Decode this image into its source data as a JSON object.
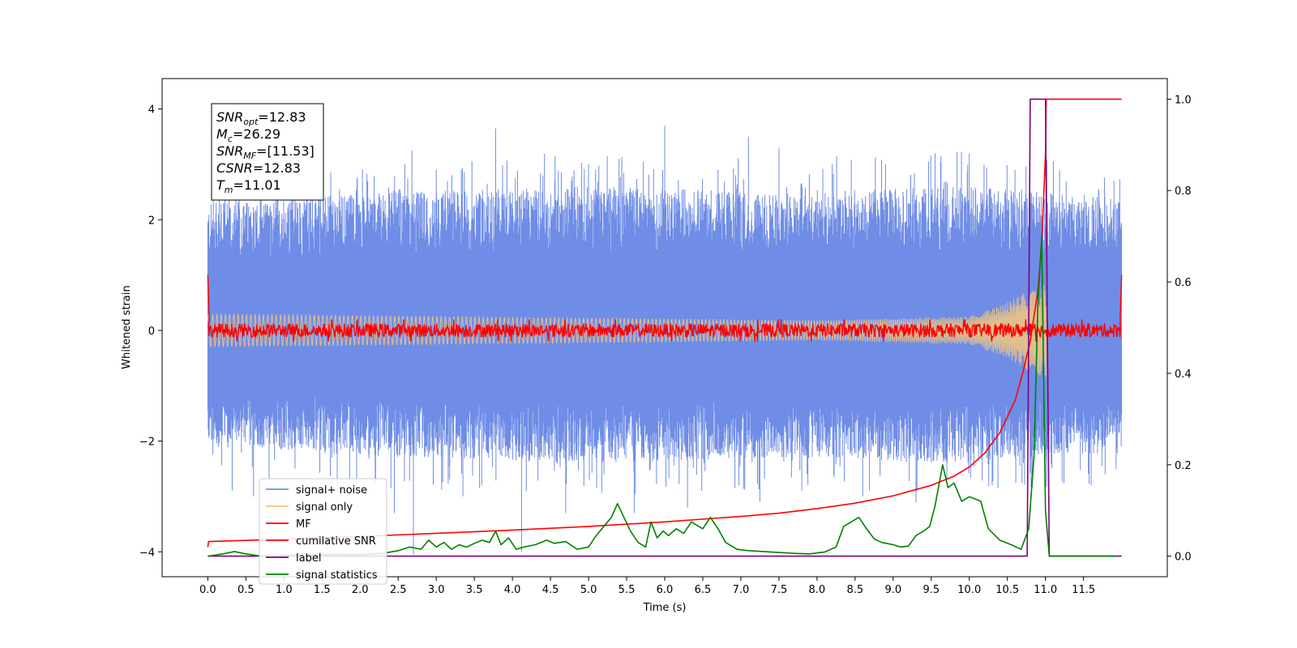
{
  "chart_data": {
    "type": "line",
    "title": "",
    "xlabel": "Time (s)",
    "ylabel": "Whitened strain",
    "y2label": "",
    "xlim": [
      -0.6,
      12.6
    ],
    "ylim": [
      -4.45,
      4.55
    ],
    "y2lim": [
      -0.045,
      1.045
    ],
    "x_ticks": [
      0.0,
      0.5,
      1.0,
      1.5,
      2.0,
      2.5,
      3.0,
      3.5,
      4.0,
      4.5,
      5.0,
      5.5,
      6.0,
      6.5,
      7.0,
      7.5,
      8.0,
      8.5,
      9.0,
      9.5,
      10.0,
      10.5,
      11.0,
      11.5
    ],
    "x_tick_labels": [
      "0.0",
      "0.5",
      "1.0",
      "1.5",
      "2.0",
      "2.5",
      "3.0",
      "3.5",
      "4.0",
      "4.5",
      "5.0",
      "5.5",
      "6.0",
      "6.5",
      "7.0",
      "7.5",
      "8.0",
      "8.5",
      "9.0",
      "9.5",
      "10.0",
      "10.5",
      "11.0",
      "11.5"
    ],
    "y_ticks": [
      -4,
      -2,
      0,
      2,
      4
    ],
    "y_tick_labels": [
      "−4",
      "−2",
      "0",
      "2",
      "4"
    ],
    "y2_ticks": [
      0.0,
      0.2,
      0.4,
      0.6,
      0.8,
      1.0
    ],
    "y2_tick_labels": [
      "0.0",
      "0.2",
      "0.4",
      "0.6",
      "0.8",
      "1.0"
    ],
    "grid": false,
    "legend_position": "lower-left",
    "legend": [
      {
        "label": "signal+ noise",
        "color": "#6f8de6"
      },
      {
        "label": "signal only",
        "color": "#f5c77e"
      },
      {
        "label": "MF",
        "color": "#ff0000"
      },
      {
        "label": "cumilative SNR",
        "color": "#ff0000"
      },
      {
        "label": "label",
        "color": "#800080"
      },
      {
        "label": "signal statistics",
        "color": "#008000"
      }
    ],
    "annotation": [
      {
        "sym": "SNR",
        "sub": "opt",
        "val": "=12.83"
      },
      {
        "sym": "M",
        "sub": "c",
        "val": "=26.29"
      },
      {
        "sym": "SNR",
        "sub": "MF",
        "val": "=[11.53]"
      },
      {
        "sym": "CSNR",
        "sub": "",
        "val": "=12.83"
      },
      {
        "sym": "T",
        "sub": "m",
        "val": "=11.01"
      }
    ],
    "series": [
      {
        "name": "signal+ noise",
        "axis": "left",
        "color": "#6f8de6",
        "kind": "noise",
        "x_range": [
          0.0,
          12.0
        ],
        "envelope_upper": [
          [
            0.0,
            2.3
          ],
          [
            2.5,
            2.5
          ],
          [
            5.0,
            2.6
          ],
          [
            7.5,
            2.5
          ],
          [
            10.0,
            2.6
          ],
          [
            12.0,
            2.4
          ]
        ],
        "envelope_lower": [
          [
            0.0,
            -2.1
          ],
          [
            2.5,
            -2.3
          ],
          [
            5.0,
            -2.4
          ],
          [
            7.5,
            -2.3
          ],
          [
            10.0,
            -2.4
          ],
          [
            12.0,
            -2.2
          ]
        ],
        "spikes": [
          [
            0.15,
            2.4
          ],
          [
            0.32,
            -2.9
          ],
          [
            0.6,
            -3.0
          ],
          [
            1.3,
            2.9
          ],
          [
            1.7,
            -3.1
          ],
          [
            2.1,
            2.7
          ],
          [
            2.45,
            -3.3
          ],
          [
            2.68,
            3.25
          ],
          [
            2.7,
            -4.05
          ],
          [
            3.0,
            2.9
          ],
          [
            3.35,
            -3.0
          ],
          [
            3.78,
            3.65
          ],
          [
            4.12,
            -4.0
          ],
          [
            4.4,
            2.8
          ],
          [
            4.7,
            -3.3
          ],
          [
            5.0,
            3.0
          ],
          [
            5.4,
            3.1
          ],
          [
            5.6,
            -3.3
          ],
          [
            6.0,
            3.7
          ],
          [
            6.3,
            -3.2
          ],
          [
            6.7,
            2.9
          ],
          [
            7.1,
            3.5
          ],
          [
            7.25,
            -3.1
          ],
          [
            7.5,
            3.3
          ],
          [
            7.8,
            -2.9
          ],
          [
            8.2,
            3.0
          ],
          [
            8.6,
            -3.0
          ],
          [
            8.9,
            3.0
          ],
          [
            9.3,
            -3.1
          ],
          [
            9.55,
            3.2
          ],
          [
            10.0,
            3.2
          ],
          [
            10.3,
            -2.8
          ],
          [
            10.6,
            2.9
          ],
          [
            11.6,
            -2.8
          ],
          [
            11.9,
            2.7
          ]
        ]
      },
      {
        "name": "signal only",
        "axis": "left",
        "color": "#f5c77e",
        "kind": "chirp",
        "x_range": [
          0.0,
          11.01
        ],
        "amplitude": [
          [
            0.0,
            0.3
          ],
          [
            8.0,
            0.18
          ],
          [
            10.0,
            0.25
          ],
          [
            10.5,
            0.5
          ],
          [
            10.8,
            0.75
          ],
          [
            11.0,
            0.85
          ]
        ]
      },
      {
        "name": "MF",
        "axis": "left",
        "color": "#ff0000",
        "kind": "noise-band",
        "x_range": [
          0.0,
          12.0
        ],
        "envelope_upper": [
          [
            0.0,
            0.12
          ],
          [
            12.0,
            0.12
          ]
        ],
        "envelope_lower": [
          [
            0.0,
            -0.12
          ],
          [
            12.0,
            -0.12
          ]
        ],
        "edge_points": [
          [
            0.0,
            1.0
          ],
          [
            0.02,
            0.2
          ],
          [
            11.98,
            0.2
          ],
          [
            12.0,
            1.0
          ]
        ]
      },
      {
        "name": "cumilative SNR",
        "axis": "right",
        "color": "#ff0000",
        "kind": "line",
        "x": [
          0.0,
          0.01,
          1.0,
          2.0,
          3.0,
          4.0,
          5.0,
          6.0,
          7.0,
          7.5,
          8.0,
          8.5,
          9.0,
          9.5,
          9.8,
          10.0,
          10.2,
          10.4,
          10.6,
          10.7,
          10.8,
          10.9,
          10.95,
          11.0,
          11.01,
          12.0
        ],
        "y": [
          0.02,
          0.032,
          0.037,
          0.043,
          0.05,
          0.057,
          0.065,
          0.075,
          0.087,
          0.094,
          0.104,
          0.116,
          0.132,
          0.155,
          0.175,
          0.195,
          0.225,
          0.27,
          0.34,
          0.4,
          0.47,
          0.58,
          0.68,
          0.88,
          1.0,
          1.0
        ]
      },
      {
        "name": "label",
        "axis": "right",
        "color": "#800080",
        "kind": "line",
        "x": [
          0.0,
          10.76,
          10.8,
          11.0,
          11.05,
          12.0
        ],
        "y": [
          0.0,
          0.0,
          1.0,
          1.0,
          0.0,
          0.0
        ]
      },
      {
        "name": "signal statistics",
        "axis": "right",
        "color": "#008000",
        "kind": "line",
        "x": [
          0.0,
          0.2,
          0.35,
          0.5,
          0.7,
          1.0,
          1.3,
          1.6,
          1.9,
          2.1,
          2.3,
          2.5,
          2.65,
          2.8,
          2.9,
          3.0,
          3.1,
          3.2,
          3.3,
          3.4,
          3.5,
          3.6,
          3.7,
          3.78,
          3.85,
          3.95,
          4.05,
          4.15,
          4.3,
          4.45,
          4.55,
          4.7,
          4.85,
          5.0,
          5.1,
          5.2,
          5.3,
          5.38,
          5.45,
          5.55,
          5.65,
          5.75,
          5.82,
          5.9,
          5.98,
          6.05,
          6.15,
          6.25,
          6.35,
          6.5,
          6.6,
          6.7,
          6.8,
          6.95,
          7.1,
          7.3,
          7.5,
          7.7,
          7.9,
          8.1,
          8.25,
          8.35,
          8.45,
          8.55,
          8.65,
          8.75,
          8.85,
          9.0,
          9.1,
          9.2,
          9.3,
          9.4,
          9.48,
          9.55,
          9.65,
          9.72,
          9.8,
          9.9,
          10.0,
          10.08,
          10.15,
          10.25,
          10.4,
          10.55,
          10.68,
          10.78,
          10.85,
          10.9,
          10.95,
          11.0,
          11.05,
          11.2,
          11.5,
          11.95
        ],
        "y": [
          0.0,
          0.005,
          0.01,
          0.005,
          0.0,
          0.002,
          0.003,
          0.004,
          0.003,
          0.004,
          0.006,
          0.012,
          0.02,
          0.015,
          0.035,
          0.02,
          0.03,
          0.015,
          0.025,
          0.02,
          0.028,
          0.035,
          0.03,
          0.055,
          0.025,
          0.04,
          0.015,
          0.02,
          0.025,
          0.035,
          0.028,
          0.032,
          0.015,
          0.02,
          0.045,
          0.065,
          0.085,
          0.115,
          0.09,
          0.055,
          0.03,
          0.02,
          0.075,
          0.04,
          0.055,
          0.045,
          0.06,
          0.05,
          0.075,
          0.06,
          0.085,
          0.06,
          0.03,
          0.015,
          0.012,
          0.01,
          0.008,
          0.006,
          0.005,
          0.009,
          0.02,
          0.065,
          0.075,
          0.085,
          0.06,
          0.038,
          0.03,
          0.025,
          0.02,
          0.022,
          0.045,
          0.055,
          0.065,
          0.11,
          0.2,
          0.15,
          0.16,
          0.12,
          0.13,
          0.125,
          0.12,
          0.06,
          0.035,
          0.025,
          0.015,
          0.06,
          0.22,
          0.55,
          0.7,
          0.1,
          0.0,
          0.0,
          0.0,
          0.0
        ]
      }
    ]
  }
}
